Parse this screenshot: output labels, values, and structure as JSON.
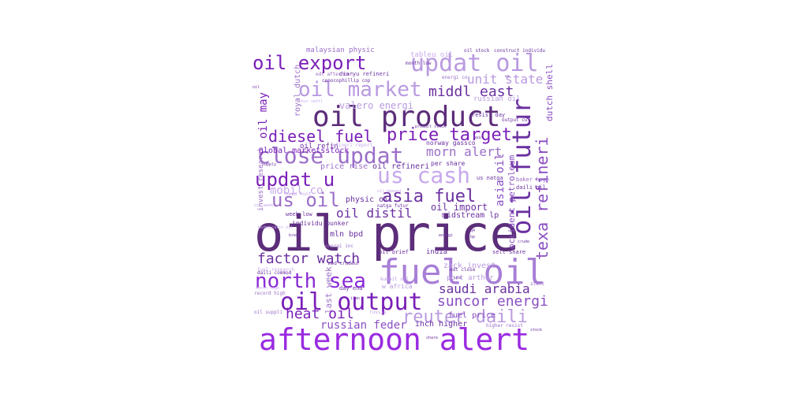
{
  "words": [
    {
      "text": "oil price",
      "color": "#5c2d7a"
    },
    {
      "text": "fuel oil",
      "color": "#a77fd6"
    },
    {
      "text": "afternoon alert",
      "color": "#9a2be0"
    },
    {
      "text": "oil product",
      "color": "#5c2d7a"
    },
    {
      "text": "oil output",
      "color": "#7a1fb8"
    },
    {
      "text": "updat oil",
      "color": "#b99ae0"
    },
    {
      "text": "oil futur",
      "color": "#6a30a0"
    },
    {
      "text": "north sea",
      "color": "#8a2ad6"
    },
    {
      "text": "close updat",
      "color": "#9b6fc8"
    },
    {
      "text": "oil market",
      "color": "#b99ae0"
    },
    {
      "text": "oil export",
      "color": "#7a1fb8"
    },
    {
      "text": "us cash",
      "color": "#c7a8ec"
    },
    {
      "text": "updat u",
      "color": "#7a1fb8"
    },
    {
      "text": "us oil",
      "color": "#9b6fc8"
    },
    {
      "text": "price target",
      "color": "#7a1fb8"
    },
    {
      "text": "asia fuel",
      "color": "#6a30a0"
    },
    {
      "text": "texa refineri",
      "color": "#8a4fc2"
    },
    {
      "text": "diesel fuel",
      "color": "#7a1fb8"
    },
    {
      "text": "reuter daili",
      "color": "#b99ae0"
    },
    {
      "text": "factor watch",
      "color": "#6a30a0"
    },
    {
      "text": "suncor energi",
      "color": "#8a4fc2"
    },
    {
      "text": "middl east",
      "color": "#6a30a0"
    },
    {
      "text": "morn alert",
      "color": "#9b6fc8"
    },
    {
      "text": "heat oil",
      "color": "#7a1fb8"
    },
    {
      "text": "saudi arabia",
      "color": "#6a30a0"
    },
    {
      "text": "oil distil",
      "color": "#6a30a0"
    },
    {
      "text": "unit state",
      "color": "#b99ae0"
    },
    {
      "text": "oil may",
      "color": "#7a1fb8"
    },
    {
      "text": "mobil co",
      "color": "#c7a8ec"
    },
    {
      "text": "russian feder",
      "color": "#8a4fc2"
    },
    {
      "text": "asia oil",
      "color": "#8a4fc2"
    },
    {
      "text": "oil import",
      "color": "#6a30a0"
    },
    {
      "text": "valero energi",
      "color": "#b99ae0"
    },
    {
      "text": "royal dutch",
      "color": "#9b6fc8"
    },
    {
      "text": "dutch shell",
      "color": "#8a4fc2"
    },
    {
      "text": "global marketsstock",
      "color": "#7a1fb8"
    },
    {
      "text": "oil refin",
      "color": "#6a30a0"
    },
    {
      "text": "price rise",
      "color": "#9b6fc8"
    },
    {
      "text": "oil refineri",
      "color": "#6a30a0"
    },
    {
      "text": "physic oil",
      "color": "#6a30a0"
    },
    {
      "text": "inch higher",
      "color": "#6a30a0"
    },
    {
      "text": "fuel price",
      "color": "#8a4fc2"
    },
    {
      "text": "last week",
      "color": "#9b6fc8"
    },
    {
      "text": "invest research",
      "color": "#9b6fc8"
    },
    {
      "text": "mln bpd",
      "color": "#6a30a0"
    },
    {
      "text": "midstream lp",
      "color": "#6a30a0"
    },
    {
      "text": "zack invest",
      "color": "#b99ae0"
    },
    {
      "text": "port arthur",
      "color": "#b99ae0"
    },
    {
      "text": "occident petroleum",
      "color": "#8a4fc2"
    },
    {
      "text": "malaysian physic",
      "color": "#9b6fc8"
    },
    {
      "text": "tableu oil",
      "color": "#c7a8ec"
    },
    {
      "text": "diaryu refineri",
      "color": "#6a30a0"
    },
    {
      "text": "edt afternoon",
      "color": "#9b6fc8"
    },
    {
      "text": "conocophillip cop",
      "color": "#6a30a0"
    },
    {
      "text": "norway gassco",
      "color": "#6a30a0"
    },
    {
      "text": "per share",
      "color": "#6a30a0"
    },
    {
      "text": "india",
      "color": "#6a30a0"
    },
    {
      "text": "individu bunker",
      "color": "#6a30a0"
    },
    {
      "text": "week low",
      "color": "#6a30a0"
    },
    {
      "text": "us natga",
      "color": "#6a30a0"
    },
    {
      "text": "baker hugh",
      "color": "#9b6fc8"
    },
    {
      "text": "daili oil",
      "color": "#6a30a0"
    },
    {
      "text": "energi inc",
      "color": "#9b6fc8"
    },
    {
      "text": "med crudeur",
      "color": "#6a30a0"
    },
    {
      "text": "day ena",
      "color": "#6a30a0"
    },
    {
      "text": "w africa",
      "color": "#b99ae0"
    },
    {
      "text": "oil brief",
      "color": "#6a30a0"
    },
    {
      "text": "kuwait oil",
      "color": "#b99ae0"
    },
    {
      "text": "sell share",
      "color": "#6a30a0"
    },
    {
      "text": "edt close",
      "color": "#6a30a0"
    },
    {
      "text": "higher resist",
      "color": "#9b6fc8"
    },
    {
      "text": "oil suppli",
      "color": "#9b6fc8"
    },
    {
      "text": "record high",
      "color": "#9b6fc8"
    },
    {
      "text": "daili commod",
      "color": "#6a30a0"
    },
    {
      "text": "month high",
      "color": "#c7a8ec"
    },
    {
      "text": "fuel research",
      "color": "#c7a8ec"
    },
    {
      "text": "head hunt",
      "color": "#c7a8ec"
    },
    {
      "text": "oil week",
      "color": "#c7a8ec"
    },
    {
      "text": "russian oil",
      "color": "#b99ae0"
    },
    {
      "text": "resist day",
      "color": "#6a30a0"
    },
    {
      "text": "oil stock",
      "color": "#6a30a0"
    },
    {
      "text": "construct individu",
      "color": "#6a30a0"
    },
    {
      "text": "month low",
      "color": "#6a30a0"
    },
    {
      "text": "natga futur",
      "color": "#6a30a0"
    },
    {
      "text": "refineri report",
      "color": "#c7a8ec"
    },
    {
      "text": "oil demand",
      "color": "#c7a8ec"
    },
    {
      "text": "futur settl",
      "color": "#c7a8ec"
    },
    {
      "text": "energi co",
      "color": "#9b6fc8"
    },
    {
      "text": "output cut",
      "color": "#6a30a0"
    },
    {
      "text": "russia",
      "color": "#c7a8ec"
    },
    {
      "text": "start",
      "color": "#9b6fc8"
    },
    {
      "text": "product stock",
      "color": "#6a30a0"
    },
    {
      "text": "technicalsr oil",
      "color": "#c7a8ec"
    },
    {
      "text": "us",
      "color": "#6a30a0"
    },
    {
      "text": "bp",
      "color": "#6a30a0"
    },
    {
      "text": "oil",
      "color": "#6a30a0"
    },
    {
      "text": "use",
      "color": "#6a30a0"
    },
    {
      "text": "iran",
      "color": "#6a30a0"
    },
    {
      "text": "q4",
      "color": "#6a30a0"
    },
    {
      "text": "gain",
      "color": "#6a30a0"
    },
    {
      "text": "crude",
      "color": "#6a30a0"
    },
    {
      "text": "share",
      "color": "#6a30a0"
    },
    {
      "text": "stock",
      "color": "#6a30a0"
    },
    {
      "text": "energi",
      "color": "#6a30a0"
    },
    {
      "text": "supply",
      "color": "#6a30a0"
    },
    {
      "text": "brent",
      "color": "#6a30a0"
    }
  ]
}
